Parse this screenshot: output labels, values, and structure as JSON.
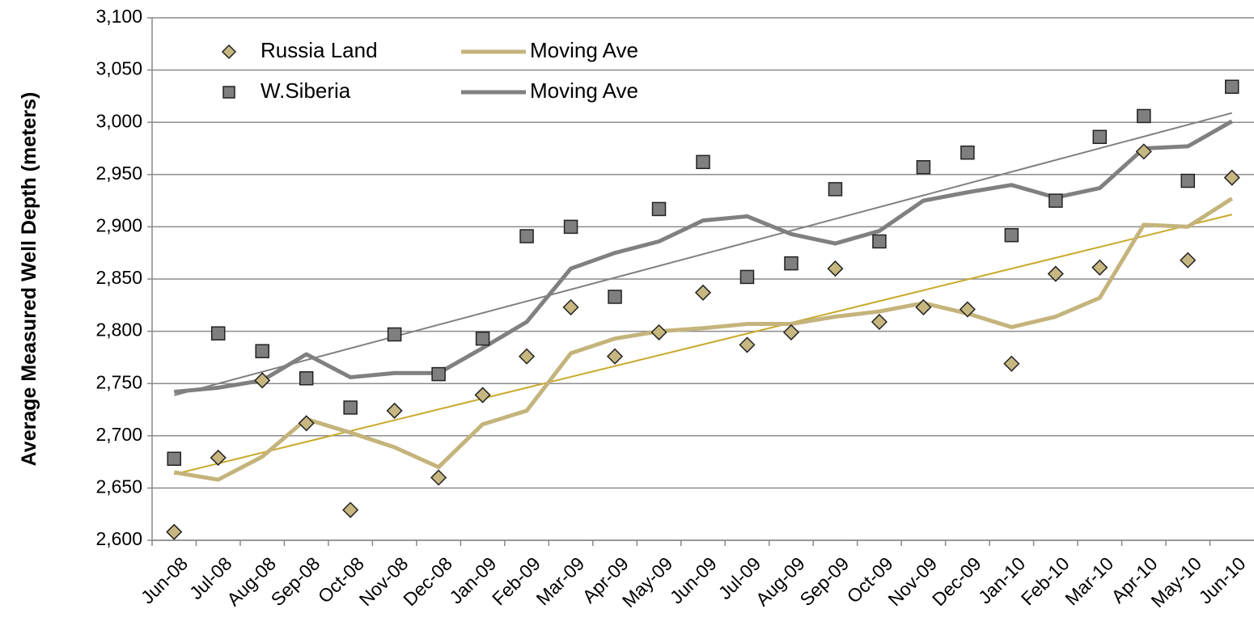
{
  "chart_data": {
    "type": "line",
    "y_label": "Average Measured Well Depth (meters)",
    "categories": [
      "Jun-08",
      "Jul-08",
      "Aug-08",
      "Sep-08",
      "Oct-08",
      "Nov-08",
      "Dec-08",
      "Jan-09",
      "Feb-09",
      "Mar-09",
      "Apr-09",
      "May-09",
      "Jun-09",
      "Jul-09",
      "Aug-09",
      "Sep-09",
      "Oct-09",
      "Nov-09",
      "Dec-09",
      "Jan-10",
      "Feb-10",
      "Mar-10",
      "Apr-10",
      "May-10",
      "Jun-10"
    ],
    "series": [
      {
        "name": "Russia Land",
        "style": "marker",
        "marker": "diamond",
        "color": "#c6b780",
        "trendline_color": "#c9a92a",
        "values": [
          2608,
          2679,
          2753,
          2712,
          2629,
          2724,
          2660,
          2739,
          2776,
          2823,
          2776,
          2799,
          2837,
          2787,
          2799,
          2860,
          2809,
          2823,
          2821,
          2769,
          2855,
          2861,
          2972,
          2868,
          2947
        ]
      },
      {
        "name": "Moving Ave",
        "style": "line",
        "color": "#c4b47c",
        "values": [
          2665,
          2658,
          2680,
          2716,
          2703,
          2689,
          2670,
          2711,
          2724,
          2779,
          2793,
          2800,
          2803,
          2807,
          2807,
          2814,
          2819,
          2827,
          2817,
          2804,
          2814,
          2832,
          2902,
          2900,
          2927
        ]
      },
      {
        "name": "W.Siberia",
        "style": "marker",
        "marker": "square",
        "color": "#7f7f7f",
        "trendline_color": "#808080",
        "values": [
          2678,
          2798,
          2781,
          2755,
          2727,
          2797,
          2759,
          2793,
          2891,
          2900,
          2833,
          2917,
          2962,
          2852,
          2865,
          2936,
          2886,
          2957,
          2971,
          2892,
          2925,
          2986,
          3006,
          2944,
          3034
        ]
      },
      {
        "name": "Moving Ave",
        "style": "line",
        "color": "#808080",
        "values": [
          2742,
          2746,
          2753,
          2778,
          2756,
          2760,
          2760,
          2784,
          2809,
          2860,
          2875,
          2886,
          2906,
          2910,
          2893,
          2884,
          2896,
          2925,
          2933,
          2940,
          2928,
          2937,
          2975,
          2977,
          3001
        ]
      }
    ],
    "trendlines": true,
    "ylim": [
      2600,
      3100
    ],
    "yticks": [
      {
        "value": 2600,
        "label": "2,600"
      },
      {
        "value": 2650,
        "label": "2,650"
      },
      {
        "value": 2700,
        "label": "2,700"
      },
      {
        "value": 2750,
        "label": "2,750"
      },
      {
        "value": 2800,
        "label": "2,800"
      },
      {
        "value": 2850,
        "label": "2,850"
      },
      {
        "value": 2900,
        "label": "2,900"
      },
      {
        "value": 2950,
        "label": "2,950"
      },
      {
        "value": 3000,
        "label": "3,000"
      },
      {
        "value": 3050,
        "label": "3,050"
      },
      {
        "value": 3100,
        "label": "3,100"
      }
    ],
    "grid": true
  }
}
